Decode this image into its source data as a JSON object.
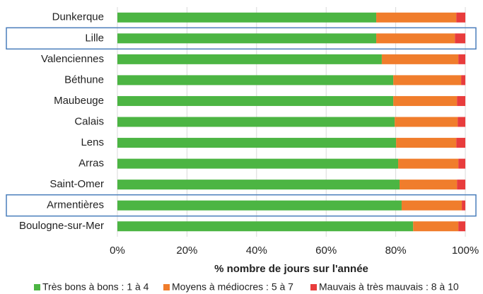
{
  "chart_data": {
    "type": "stacked_barh",
    "categories": [
      "Dunkerque",
      "Lille",
      "Valenciennes",
      "Béthune",
      "Maubeuge",
      "Calais",
      "Lens",
      "Arras",
      "Saint-Omer",
      "Armentières",
      "Boulogne-sur-Mer"
    ],
    "series": [
      {
        "name": "Très bons à bons : 1 à 4",
        "color": "#4cb543",
        "values": [
          74.4,
          74.4,
          76,
          79.3,
          79.3,
          79.7,
          80.1,
          80.7,
          81.1,
          81.7,
          85
        ]
      },
      {
        "name": "Moyens à médiocres : 5 à 7",
        "color": "#f07d2c",
        "values": [
          23,
          22.6,
          22,
          19.5,
          18.3,
          18.1,
          17.3,
          17.3,
          16.5,
          17.3,
          13
        ]
      },
      {
        "name": "Mauvais à très mauvais : 8 à 10",
        "color": "#e83c3c",
        "values": [
          2.6,
          3,
          2,
          1.2,
          2.4,
          2.2,
          2.6,
          2,
          2.4,
          1,
          2
        ]
      }
    ],
    "xlabel": "% nombre de jours sur l'année",
    "xlim": [
      0,
      100
    ],
    "xticks": [
      {
        "value": 0,
        "label": "0%"
      },
      {
        "value": 20,
        "label": "20%"
      },
      {
        "value": 40,
        "label": "40%"
      },
      {
        "value": 60,
        "label": "60%"
      },
      {
        "value": 80,
        "label": "80%"
      },
      {
        "value": 100,
        "label": "100%"
      }
    ],
    "grid": true,
    "highlighted_categories": [
      1,
      9
    ],
    "highlight_color": "#4a7ebb",
    "legend": "bottom"
  }
}
